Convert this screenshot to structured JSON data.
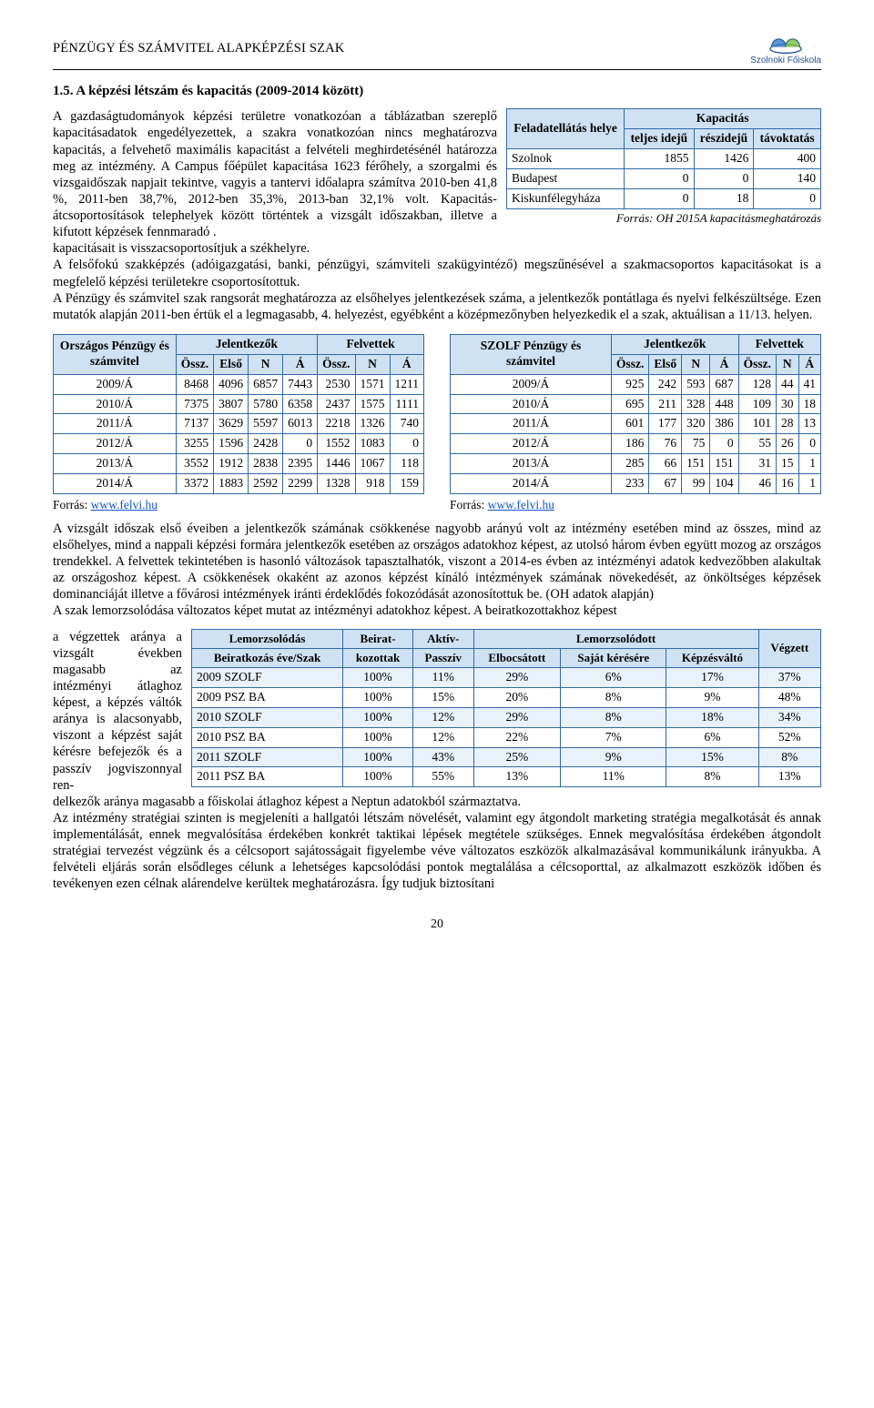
{
  "header": {
    "title": "PÉNZÜGY ÉS SZÁMVITEL ALAPKÉPZÉSI SZAK",
    "logo_label": "Szolnoki Főiskola"
  },
  "section_title": "1.5. A képzési létszám és kapacitás (2009-2014 között)",
  "paragraph_top_1": "A gazdaságtudományok képzési területre vonatkozóan a táblázatban szereplő kapacitásadatok engedélyezettek, a szakra vonatkozóan nincs meghatározva kapacitás, a felvehető maximális kapacitást a felvételi meghirdetésénél határozza meg az intézmény. A Campus főépület kapacitása 1623 férőhely, a szorgalmi és vizsgaidőszak napjait tekintve, vagyis a tantervi időalapra számítva 2010-ben 41,8 %, 2011-ben 38,7%, 2012-ben 35,3%, 2013-ban 32,1% volt. Kapacitás-átcsoportosítások telephelyek között történtek a vizsgált időszakban, illetve a kifutott képzések fennmaradó .",
  "paragraph_top_2": "kapacitásait is visszacsoportosítjuk a székhelyre.",
  "paragraph_top_3": "A felsőfokú szakképzés (adóigazgatási, banki, pénzügyi, számviteli szakügyintéző) megszűnésével a szakmacsoportos kapacitásokat is a megfelelő képzési területekre csoportosítottuk.",
  "paragraph_top_4": "A Pénzügy és számvitel szak rangsorát meghatározza az elsőhelyes jelentkezések száma, a jelentkezők pontátlaga és nyelvi felkészültsége. Ezen mutatók alapján 2011-ben értük el a legmagasabb, 4. helyezést, egyébként a középmezőnyben helyezkedik el a szak, aktuálisan a 11/13. helyen.",
  "capacity_table": {
    "col_label_site": "Feladatellátás helye",
    "col_label_group": "Kapacitás",
    "cols": [
      "teljes idejű",
      "részidejű",
      "távoktatás"
    ],
    "rows": [
      {
        "site": "Szolnok",
        "vals": [
          "1855",
          "1426",
          "400"
        ]
      },
      {
        "site": "Budapest",
        "vals": [
          "0",
          "0",
          "140"
        ]
      },
      {
        "site": "Kiskunfélegyháza",
        "vals": [
          "0",
          "18",
          "0"
        ]
      }
    ],
    "caption": "Forrás: OH 2015A kapacitásmeghatározás"
  },
  "applicants_national": {
    "title1": "Országos Pénzügy és számvitel",
    "group_app": "Jelentkezők",
    "group_adm": "Felvettek",
    "subcols": [
      "Össz.",
      "Első",
      "N",
      "Á",
      "Össz.",
      "N",
      "Á"
    ],
    "rows": [
      [
        "2009/Á",
        "8468",
        "4096",
        "6857",
        "7443",
        "2530",
        "1571",
        "1211"
      ],
      [
        "2010/Á",
        "7375",
        "3807",
        "5780",
        "6358",
        "2437",
        "1575",
        "1111"
      ],
      [
        "2011/Á",
        "7137",
        "3629",
        "5597",
        "6013",
        "2218",
        "1326",
        "740"
      ],
      [
        "2012/Á",
        "3255",
        "1596",
        "2428",
        "0",
        "1552",
        "1083",
        "0"
      ],
      [
        "2013/Á",
        "3552",
        "1912",
        "2838",
        "2395",
        "1446",
        "1067",
        "118"
      ],
      [
        "2014/Á",
        "3372",
        "1883",
        "2592",
        "2299",
        "1328",
        "918",
        "159"
      ]
    ]
  },
  "applicants_szolf": {
    "title1": "SZOLF Pénzügy és számvitel",
    "group_app": "Jelentkezők",
    "group_adm": "Felvettek",
    "subcols": [
      "Össz.",
      "Első",
      "N",
      "Á",
      "Össz.",
      "N",
      "Á"
    ],
    "rows": [
      [
        "2009/Á",
        "925",
        "242",
        "593",
        "687",
        "128",
        "44",
        "41"
      ],
      [
        "2010/Á",
        "695",
        "211",
        "328",
        "448",
        "109",
        "30",
        "18"
      ],
      [
        "2011/Á",
        "601",
        "177",
        "320",
        "386",
        "101",
        "28",
        "13"
      ],
      [
        "2012/Á",
        "186",
        "76",
        "75",
        "0",
        "55",
        "26",
        "0"
      ],
      [
        "2013/Á",
        "285",
        "66",
        "151",
        "151",
        "31",
        "15",
        "1"
      ],
      [
        "2014/Á",
        "233",
        "67",
        "99",
        "104",
        "46",
        "16",
        "1"
      ]
    ]
  },
  "source_label": "Forrás: ",
  "source_link": "www.felvi.hu",
  "paragraph_mid_1": "A vizsgált időszak első éveiben a jelentkezők számának csökkenése nagyobb arányú volt az intézmény esetében mind az összes, mind az elsőhelyes, mind a nappali képzési formára jelentkezők esetében az országos adatokhoz képest, az utolsó három évben együtt mozog az országos trendekkel. A felvettek tekintetében is hasonló változások tapasztalhatók, viszont a 2014-es évben az intézményi adatok kedvezőbben alakultak az országoshoz képest. A csökkenések okaként az azonos képzést kínáló intézmények számának növekedését, az önköltséges képzések dominanciáját illetve a fővárosi intézmények iránti érdeklődés fokozódását azonosítottuk be. (OH adatok alapján)",
  "paragraph_mid_2": "A szak lemorzsolódása változatos képet mutat az intézményi adatokhoz képest. A beiratkozottakhoz képest",
  "attrition_side": "a végzettek aránya a vizsgált években magasabb az intézményi átlaghoz képest, a képzés váltók aránya is alacsonyabb, viszont a képzést saját kérésre befejezők és a passzív jogviszonnyal ren-",
  "paragraph_mid_3": "delkezők aránya magasabb a főiskolai átlaghoz képest a Neptun adatokból származtatva.",
  "attrition_table": {
    "h1": "Lemorzsolódás",
    "h1b": "Beiratkozás éve/Szak",
    "h2a": "Beirat-",
    "h2b": "kozottak",
    "h3a": "Aktív-",
    "h3b": "Passzív",
    "hgroup": "Lemorzsolódott",
    "hsub": [
      "Elbocsátott",
      "Saját kérésére",
      "Képzésváltó"
    ],
    "hend": "Végzett",
    "rows": [
      [
        "2009 SZOLF",
        "100%",
        "11%",
        "29%",
        "6%",
        "17%",
        "37%"
      ],
      [
        "2009 PSZ BA",
        "100%",
        "15%",
        "20%",
        "8%",
        "9%",
        "48%"
      ],
      [
        "2010 SZOLF",
        "100%",
        "12%",
        "29%",
        "8%",
        "18%",
        "34%"
      ],
      [
        "2010 PSZ BA",
        "100%",
        "12%",
        "22%",
        "7%",
        "6%",
        "52%"
      ],
      [
        "2011 SZOLF",
        "100%",
        "43%",
        "25%",
        "9%",
        "15%",
        "8%"
      ],
      [
        "2011 PSZ BA",
        "100%",
        "55%",
        "13%",
        "11%",
        "8%",
        "13%"
      ]
    ]
  },
  "paragraph_bottom": "Az intézmény stratégiai szinten is megjeleníti a hallgatói létszám növelését, valamint egy átgondolt marketing stratégia megalkotását és annak implementálását, ennek megvalósítása érdekében konkrét taktikai lépések megtétele szükséges. Ennek megvalósítása érdekében átgondolt stratégiai tervezést végzünk és a célcsoport sajátosságait figyelembe véve változatos eszközök alkalmazásával kommunikálunk irányukba. A felvételi eljárás során elsődleges célunk a lehetséges kapcsolódási pontok megtalálása a célcsoporttal, az alkalmazott eszközök időben és tevékenyen ezen célnak alárendelve kerültek meghatározásra. Így tudjuk biztosítani",
  "page_number": "20",
  "colors": {
    "border": "#2f6aa8",
    "header_bg": "#cfe2f3",
    "row_alt": "#e9f1fa",
    "link": "#1155cc"
  }
}
